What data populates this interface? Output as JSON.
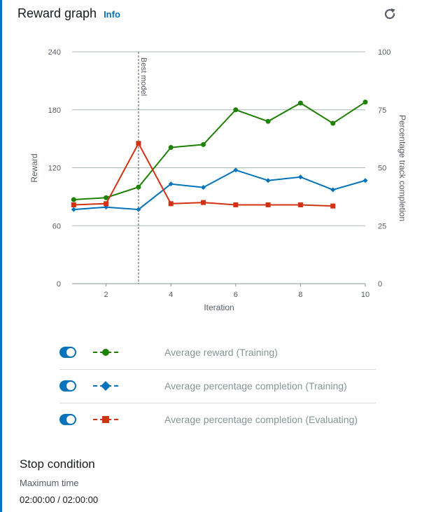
{
  "header": {
    "title": "Reward graph",
    "info_label": "Info",
    "refresh_icon": "refresh-icon"
  },
  "chart_data": {
    "type": "line",
    "xlabel": "Iteration",
    "ylabel": "Reward",
    "y2label": "Percentage track completion",
    "x_ticks": [
      2,
      4,
      6,
      8,
      10
    ],
    "y_ticks": [
      0,
      60,
      120,
      180,
      240
    ],
    "y2_ticks": [
      0,
      25,
      50,
      75,
      100
    ],
    "xlim": [
      0.95,
      10
    ],
    "ylim": [
      0,
      240
    ],
    "y2lim": [
      0,
      100
    ],
    "grid": true,
    "best_model": {
      "x": 3,
      "label": "Best model"
    },
    "series": [
      {
        "name": "Average reward (Training)",
        "axis": "left",
        "marker": "circle",
        "color": "#1d8102",
        "x": [
          1,
          2,
          3,
          4,
          5,
          6,
          7,
          8,
          9,
          10
        ],
        "y": [
          87,
          89,
          100,
          141,
          144,
          180,
          168,
          187,
          166,
          188
        ]
      },
      {
        "name": "Average percentage completion (Training)",
        "axis": "right",
        "marker": "diamond",
        "color": "#0073bb",
        "x": [
          1,
          2,
          3,
          4,
          5,
          6,
          7,
          8,
          9,
          10
        ],
        "y": [
          32,
          33,
          32,
          43,
          41.5,
          49,
          44.5,
          46,
          40.5,
          44.5
        ]
      },
      {
        "name": "Average percentage completion (Evaluating)",
        "axis": "right",
        "marker": "square",
        "color": "#d13212",
        "x": [
          1,
          2,
          3,
          4,
          5,
          6,
          7,
          8,
          9
        ],
        "y": [
          34,
          34.5,
          60.5,
          34.5,
          35,
          34,
          34,
          34,
          33.5
        ]
      }
    ]
  },
  "legend": [
    {
      "label": "Average reward (Training)",
      "enabled": true,
      "marker": "circle",
      "color": "#1d8102"
    },
    {
      "label": "Average percentage completion (Training)",
      "enabled": true,
      "marker": "diamond",
      "color": "#0073bb"
    },
    {
      "label": "Average percentage completion (Evaluating)",
      "enabled": true,
      "marker": "square",
      "color": "#d13212"
    }
  ],
  "stop_condition": {
    "title": "Stop condition",
    "label": "Maximum time",
    "value": "02:00:00 / 02:00:00"
  }
}
